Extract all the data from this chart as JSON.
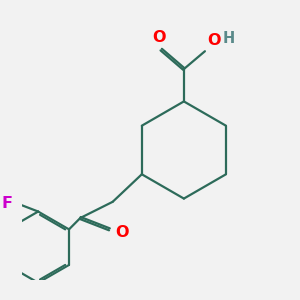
{
  "background_color": "#f2f2f2",
  "bond_color": "#2d6b5a",
  "bond_width": 1.6,
  "atom_colors": {
    "O": "#ff0000",
    "F": "#cc00cc",
    "H": "#5a8a8a",
    "C": "#2d6b5a"
  },
  "font_size": 10.5
}
